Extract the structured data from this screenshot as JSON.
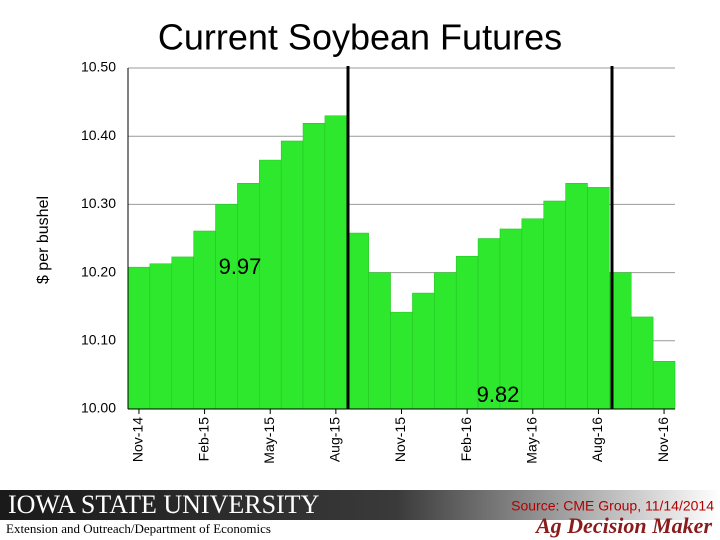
{
  "chart_data": {
    "type": "bar",
    "title": "Current Soybean Futures",
    "y_label": "$ per bushel",
    "categories": [
      "Nov-14",
      null,
      null,
      "Feb-15",
      null,
      null,
      "May-15",
      null,
      null,
      "Aug-15",
      null,
      null,
      "Nov-15",
      null,
      null,
      "Feb-16",
      null,
      null,
      "May-16",
      null,
      null,
      "Aug-16",
      null,
      null,
      "Nov-16"
    ],
    "values": [
      10.208,
      10.213,
      10.223,
      10.261,
      10.3,
      10.331,
      10.365,
      10.393,
      10.419,
      10.43,
      10.258,
      10.2,
      10.142,
      10.17,
      10.2,
      10.224,
      10.25,
      10.264,
      10.279,
      10.305,
      10.331,
      10.325,
      10.2,
      10.135,
      10.07
    ],
    "color": "#2ee82e",
    "ylim": [
      10.0,
      10.5
    ],
    "yticks": [
      {
        "value": 10.0,
        "label": "10.00"
      },
      {
        "value": 10.1,
        "label": "10.10"
      },
      {
        "value": 10.2,
        "label": "10.20"
      },
      {
        "value": 10.3,
        "label": "10.30"
      },
      {
        "value": 10.4,
        "label": "10.40"
      },
      {
        "value": 10.5,
        "label": "10.50"
      }
    ],
    "grid": true,
    "annotations": [
      "9.97",
      "9.82"
    ]
  },
  "footer": {
    "university": "IOWA STATE UNIVERSITY",
    "department": "Extension and Outreach/Department of Economics",
    "source": "Source: CME Group, 11/14/2014",
    "brand": "Ag Decision Maker"
  }
}
